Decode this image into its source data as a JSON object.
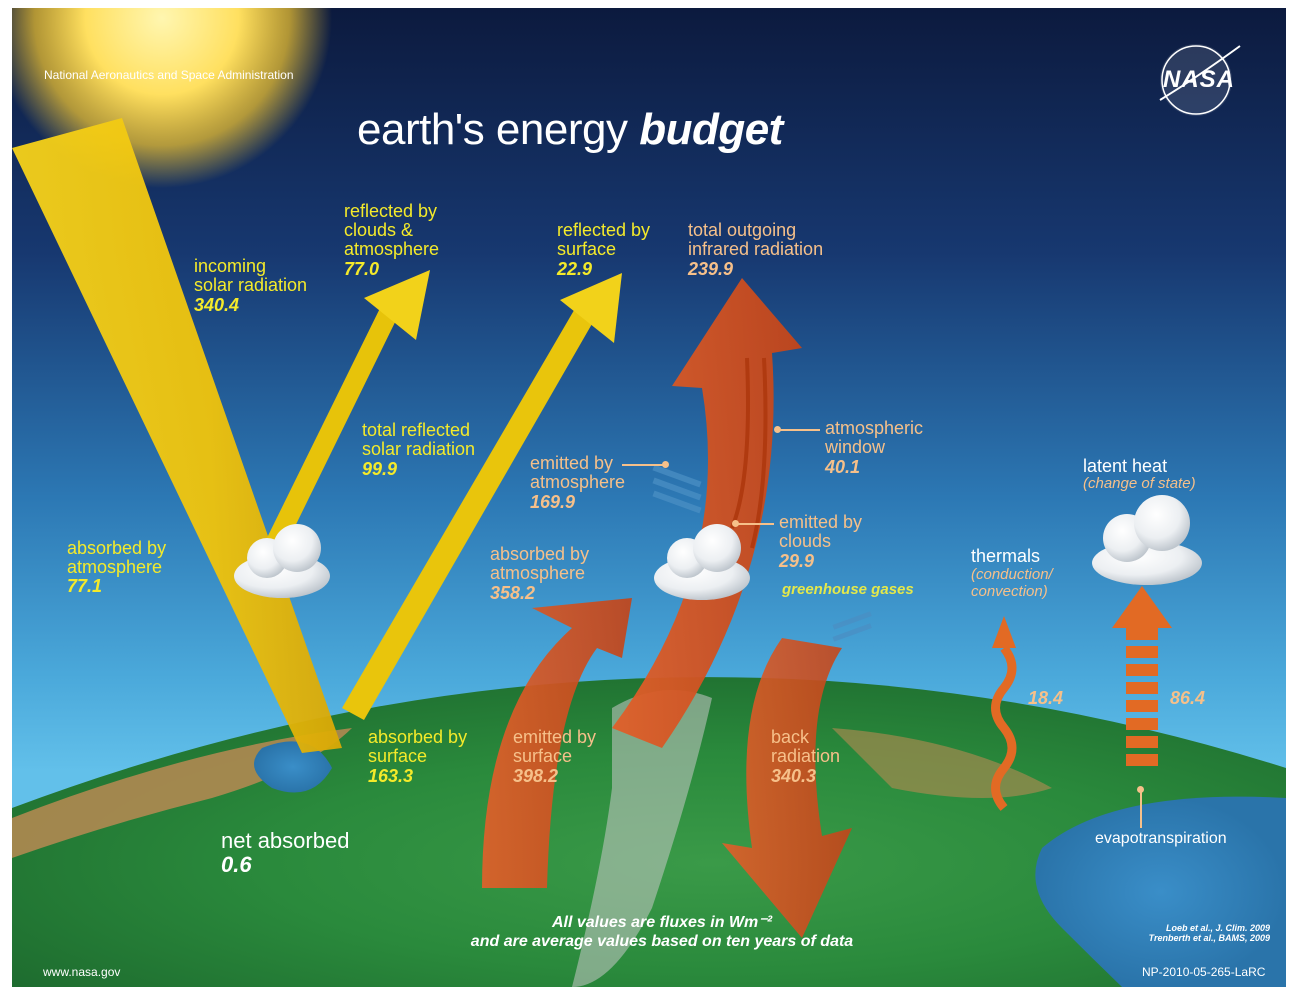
{
  "header": {
    "agency": "National Aeronautics and Space Administration",
    "title_main": "earth's energy ",
    "title_emph": "budget",
    "logo_text": "NASA"
  },
  "labels": {
    "incoming": {
      "label": "incoming\nsolar radiation",
      "value": "340.4"
    },
    "reflected_clouds": {
      "label": "reflected by\nclouds &\natmosphere",
      "value": "77.0"
    },
    "reflected_surface": {
      "label": "reflected by\nsurface",
      "value": "22.9"
    },
    "total_outgoing": {
      "label": "total outgoing\ninfrared radiation",
      "value": "239.9"
    },
    "total_reflected": {
      "label": "total reflected\nsolar radiation",
      "value": "99.9"
    },
    "absorbed_atmosphere": {
      "label": "absorbed by\natmosphere",
      "value": "77.1"
    },
    "absorbed_surface": {
      "label": "absorbed by\nsurface",
      "value": "163.3"
    },
    "net_absorbed": {
      "label": "net absorbed",
      "value": "0.6"
    },
    "emitted_atmosphere": {
      "label": "emitted by\natmosphere",
      "value": "169.9"
    },
    "atmospheric_window": {
      "label": "atmospheric\nwindow",
      "value": "40.1"
    },
    "emitted_clouds": {
      "label": "emitted by\nclouds",
      "value": "29.9"
    },
    "absorbed_atmosphere_ir": {
      "label": "absorbed by\natmosphere",
      "value": "358.2"
    },
    "greenhouse": "greenhouse gases",
    "emitted_surface": {
      "label": "emitted by\nsurface",
      "value": "398.2"
    },
    "back_radiation": {
      "label": "back\nradiation",
      "value": "340.3"
    },
    "latent_heat": {
      "label": "latent heat",
      "sublabel": "(change of state)",
      "value": "86.4"
    },
    "thermals": {
      "label": "thermals",
      "sublabel": "(conduction/\nconvection)",
      "value": "18.4"
    },
    "evapotranspiration": "evapotranspiration"
  },
  "footer": {
    "note_line1": "All values are fluxes in Wm⁻²",
    "note_line2": "and are average values based on ten years of data",
    "cite1": "Loeb et al., J. Clim. 2009",
    "cite2": "Trenberth et al., BAMS, 2009",
    "website": "www.nasa.gov",
    "doc_id": "NP-2010-05-265-LaRC"
  },
  "colors": {
    "solar": "#f2cc10",
    "infrared": "#d8501c",
    "label_solar": "#f4ea2a",
    "label_infrared": "#f6c08a"
  }
}
